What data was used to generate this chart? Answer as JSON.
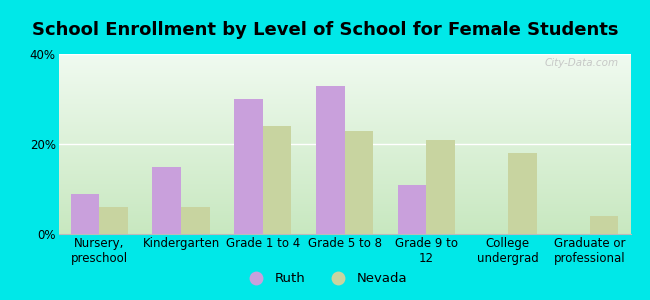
{
  "title": "School Enrollment by Level of School for Female Students",
  "categories": [
    "Nursery,\npreschool",
    "Kindergarten",
    "Grade 1 to 4",
    "Grade 5 to 8",
    "Grade 9 to\n12",
    "College\nundergrad",
    "Graduate or\nprofessional"
  ],
  "ruth_values": [
    9,
    15,
    30,
    33,
    11,
    0,
    0
  ],
  "nevada_values": [
    6,
    6,
    24,
    23,
    21,
    18,
    4
  ],
  "ruth_color": "#c9a0dc",
  "nevada_color": "#c8d4a0",
  "background_color": "#00e8e8",
  "grad_top": "#f0faf0",
  "grad_bottom": "#c8e8c0",
  "ylim": [
    0,
    40
  ],
  "yticks": [
    0,
    20,
    40
  ],
  "ytick_labels": [
    "0%",
    "20%",
    "40%"
  ],
  "bar_width": 0.35,
  "legend_labels": [
    "Ruth",
    "Nevada"
  ],
  "watermark": "City-Data.com",
  "title_fontsize": 13,
  "tick_fontsize": 8.5
}
